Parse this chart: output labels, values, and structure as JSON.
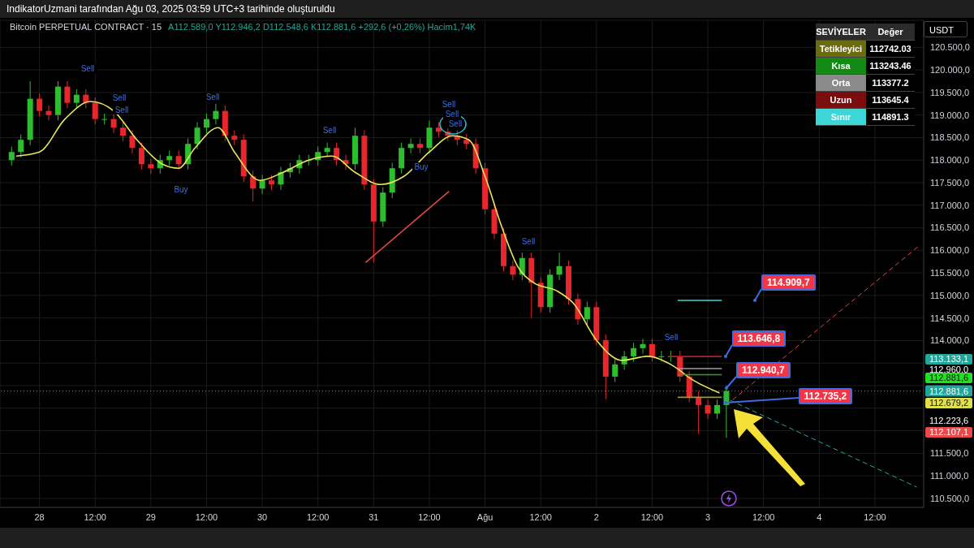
{
  "chart_data": {
    "type": "candlestick",
    "title": "Bitcoin PERPETUAL CONTRACT · 15",
    "x": [
      "2025-07-27T18:00",
      "2025-07-27T20:00",
      "2025-07-27T22:00",
      "2025-07-28T00:00",
      "2025-07-28T02:00",
      "2025-07-28T04:00",
      "2025-07-28T06:00",
      "2025-07-28T08:00",
      "2025-07-28T10:00",
      "2025-07-28T12:00",
      "2025-07-28T14:00",
      "2025-07-28T16:00",
      "2025-07-28T18:00",
      "2025-07-28T20:00",
      "2025-07-28T22:00",
      "2025-07-29T00:00",
      "2025-07-29T02:00",
      "2025-07-29T04:00",
      "2025-07-29T06:00",
      "2025-07-29T08:00",
      "2025-07-29T10:00",
      "2025-07-29T12:00",
      "2025-07-29T14:00",
      "2025-07-29T16:00",
      "2025-07-29T18:00",
      "2025-07-29T20:00",
      "2025-07-29T22:00",
      "2025-07-30T00:00",
      "2025-07-30T02:00",
      "2025-07-30T04:00",
      "2025-07-30T06:00",
      "2025-07-30T08:00",
      "2025-07-30T10:00",
      "2025-07-30T12:00",
      "2025-07-30T14:00",
      "2025-07-30T16:00",
      "2025-07-30T18:00",
      "2025-07-30T20:00",
      "2025-07-30T22:00",
      "2025-07-31T00:00",
      "2025-07-31T02:00",
      "2025-07-31T04:00",
      "2025-07-31T06:00",
      "2025-07-31T08:00",
      "2025-07-31T10:00",
      "2025-07-31T12:00",
      "2025-07-31T14:00",
      "2025-07-31T16:00",
      "2025-07-31T18:00",
      "2025-07-31T20:00",
      "2025-07-31T22:00",
      "2025-08-01T00:00",
      "2025-08-01T02:00",
      "2025-08-01T04:00",
      "2025-08-01T06:00",
      "2025-08-01T08:00",
      "2025-08-01T10:00",
      "2025-08-01T12:00",
      "2025-08-01T14:00",
      "2025-08-01T16:00",
      "2025-08-01T18:00",
      "2025-08-01T20:00",
      "2025-08-01T22:00",
      "2025-08-02T00:00",
      "2025-08-02T02:00",
      "2025-08-02T04:00",
      "2025-08-02T06:00",
      "2025-08-02T08:00",
      "2025-08-02T10:00",
      "2025-08-02T12:00",
      "2025-08-02T14:00",
      "2025-08-02T16:00",
      "2025-08-02T18:00",
      "2025-08-02T20:00",
      "2025-08-02T22:00",
      "2025-08-03T00:00",
      "2025-08-03T02:00",
      "2025-08-03T04:00"
    ],
    "ohlc": [
      [
        118000,
        118300,
        117880,
        118180
      ],
      [
        118180,
        118570,
        118060,
        118450
      ],
      [
        118450,
        119750,
        118330,
        119360
      ],
      [
        119360,
        119480,
        118970,
        119090
      ],
      [
        119090,
        119210,
        118880,
        119000
      ],
      [
        119000,
        119750,
        118880,
        119630
      ],
      [
        119630,
        119750,
        119150,
        119270
      ],
      [
        119270,
        119570,
        119150,
        119450
      ],
      [
        119450,
        119570,
        119150,
        119270
      ],
      [
        119270,
        119390,
        118790,
        118910
      ],
      [
        118910,
        119030,
        118790,
        118910
      ],
      [
        118910,
        119030,
        118600,
        118720
      ],
      [
        118720,
        118840,
        118420,
        118540
      ],
      [
        118540,
        118660,
        118150,
        118270
      ],
      [
        118270,
        118390,
        117790,
        117910
      ],
      [
        117910,
        118030,
        117700,
        117820
      ],
      [
        117820,
        118120,
        117700,
        118000
      ],
      [
        118000,
        118210,
        117880,
        118090
      ],
      [
        118090,
        118210,
        117790,
        117910
      ],
      [
        117910,
        118480,
        117790,
        118360
      ],
      [
        118360,
        118840,
        118240,
        118720
      ],
      [
        118720,
        119030,
        118600,
        118910
      ],
      [
        118910,
        119250,
        118790,
        119090
      ],
      [
        119090,
        119210,
        118420,
        118540
      ],
      [
        118540,
        118660,
        118330,
        118450
      ],
      [
        118450,
        118570,
        117520,
        117640
      ],
      [
        117640,
        117760,
        117080,
        117370
      ],
      [
        117370,
        117670,
        117250,
        117550
      ],
      [
        117550,
        117670,
        117340,
        117460
      ],
      [
        117460,
        117850,
        117340,
        117730
      ],
      [
        117730,
        117940,
        117610,
        117820
      ],
      [
        117820,
        118120,
        117700,
        118000
      ],
      [
        118000,
        118120,
        117880,
        118000
      ],
      [
        118000,
        118300,
        117880,
        118180
      ],
      [
        118180,
        118390,
        118060,
        118270
      ],
      [
        118270,
        118390,
        117880,
        118000
      ],
      [
        118000,
        118120,
        117790,
        117910
      ],
      [
        117910,
        118720,
        117790,
        118540
      ],
      [
        118540,
        118660,
        117340,
        117460
      ],
      [
        117460,
        117580,
        115730,
        116640
      ],
      [
        116640,
        117400,
        116520,
        117280
      ],
      [
        117280,
        117940,
        117160,
        117820
      ],
      [
        117820,
        118390,
        117700,
        118270
      ],
      [
        118270,
        118480,
        118150,
        118360
      ],
      [
        118360,
        118480,
        118150,
        118270
      ],
      [
        118270,
        118880,
        118150,
        118720
      ],
      [
        118720,
        118840,
        118510,
        118630
      ],
      [
        118630,
        118750,
        118420,
        118540
      ],
      [
        118540,
        118660,
        118330,
        118450
      ],
      [
        118450,
        118570,
        118240,
        118360
      ],
      [
        118360,
        118480,
        117700,
        117820
      ],
      [
        117820,
        117940,
        116790,
        116910
      ],
      [
        116910,
        117030,
        116250,
        116370
      ],
      [
        116370,
        116490,
        115530,
        115650
      ],
      [
        115650,
        115770,
        115340,
        115460
      ],
      [
        115460,
        115950,
        115340,
        115830
      ],
      [
        115830,
        115950,
        114500,
        115280
      ],
      [
        115280,
        115400,
        114620,
        114740
      ],
      [
        114740,
        115580,
        114620,
        115460
      ],
      [
        115460,
        115950,
        115340,
        115650
      ],
      [
        115650,
        115770,
        114800,
        114920
      ],
      [
        114920,
        115040,
        114350,
        114470
      ],
      [
        114470,
        114860,
        114350,
        114740
      ],
      [
        114740,
        114860,
        113890,
        114010
      ],
      [
        114010,
        114130,
        112700,
        113200
      ],
      [
        113200,
        113590,
        113080,
        113470
      ],
      [
        113470,
        113770,
        113350,
        113650
      ],
      [
        113650,
        113950,
        113530,
        113830
      ],
      [
        113830,
        114040,
        113710,
        113920
      ],
      [
        113920,
        114040,
        113530,
        113650
      ],
      [
        113650,
        113770,
        113530,
        113650
      ],
      [
        113650,
        113770,
        113530,
        113650
      ],
      [
        113650,
        113770,
        113080,
        113200
      ],
      [
        113200,
        113320,
        112630,
        112750
      ],
      [
        112750,
        112870,
        111930,
        112570
      ],
      [
        112570,
        112690,
        112260,
        112380
      ],
      [
        112380,
        112690,
        112260,
        112570
      ],
      [
        112570,
        113000,
        111840,
        112881.6
      ]
    ],
    "series": [
      {
        "type": "line",
        "color": "#e8e85a",
        "x": [
          "2025-07-27T19:00",
          "2025-07-28T00:00",
          "2025-07-28T05:30",
          "2025-07-28T11:00",
          "2025-07-28T16:00",
          "2025-07-28T21:00",
          "2025-07-29T02:30",
          "2025-07-29T06:00",
          "2025-07-29T09:30",
          "2025-07-29T14:30",
          "2025-07-29T18:00",
          "2025-07-29T23:30",
          "2025-07-30T04:30",
          "2025-07-30T10:00",
          "2025-07-30T15:00",
          "2025-07-30T20:00",
          "2025-07-31T01:30",
          "2025-07-31T06:30",
          "2025-07-31T12:00",
          "2025-07-31T17:00",
          "2025-07-31T20:30",
          "2025-08-01T00:00",
          "2025-08-01T03:30",
          "2025-08-01T07:00",
          "2025-08-01T10:30",
          "2025-08-01T15:30",
          "2025-08-01T19:00",
          "2025-08-02T00:00",
          "2025-08-02T05:30",
          "2025-08-02T11:00",
          "2025-08-02T16:00",
          "2025-08-02T21:00",
          "2025-08-03T02:30"
        ],
        "values": [
          118090,
          118180,
          118910,
          119300,
          119090,
          118450,
          117910,
          117820,
          118270,
          118720,
          118180,
          117550,
          117730,
          118000,
          118090,
          117730,
          117460,
          117640,
          118180,
          118540,
          118450,
          117640,
          116550,
          115650,
          115280,
          115100,
          114830,
          114010,
          113560,
          113650,
          113470,
          113110,
          112840
        ]
      },
      {
        "type": "line",
        "color": "#3dd6d6",
        "x": [
          "2025-08-02T17:30",
          "2025-08-03T03:00"
        ],
        "values": [
          114891.3,
          114891.3
        ]
      },
      {
        "type": "line",
        "color": "#b22222",
        "x": [
          "2025-08-02T15:30",
          "2025-08-03T03:00"
        ],
        "values": [
          113645.4,
          113645.4
        ]
      },
      {
        "type": "line",
        "color": "#9e9e9e",
        "x": [
          "2025-08-02T17:30",
          "2025-08-03T03:00"
        ],
        "values": [
          113377.2,
          113377.2
        ]
      },
      {
        "type": "line",
        "color": "#2e9e2e",
        "x": [
          "2025-08-02T17:30",
          "2025-08-03T03:00"
        ],
        "values": [
          113243.46,
          113243.46
        ]
      },
      {
        "type": "line",
        "color": "#9a9a2a",
        "x": [
          "2025-08-02T17:30",
          "2025-08-03T03:00"
        ],
        "values": [
          112742.03,
          112742.03
        ]
      },
      {
        "type": "line",
        "color": "#e04848",
        "x": [
          "2025-07-30T22:15",
          "2025-07-31T16:15"
        ],
        "values": [
          115730,
          117310
        ]
      },
      {
        "type": "line",
        "color": "#e04848",
        "line_style": "dashed",
        "x": [
          "2025-08-03T04:00",
          "2025-08-04T21:30"
        ],
        "values": [
          112570,
          116100
        ]
      },
      {
        "type": "line",
        "color": "#2aa7a7",
        "line_style": "dashed",
        "x": [
          "2025-08-03T03:15",
          "2025-08-04T21:00"
        ],
        "values": [
          112750,
          110750
        ]
      }
    ],
    "ref_lines": [
      {
        "axis": "y",
        "value": 112881.6,
        "label": "112.881,6",
        "color": "#22a69a",
        "line_style": "dotted"
      }
    ],
    "annotations": [
      "IndikatorUzmani tarafından Ağu 03, 2025 03:59 UTC+3 tarihinde oluşturuldu",
      "A112.589,0 Y112.946,2 D112.548,6 K112.881,6 +292,6 (+0,26%) Hacim1,74K",
      "SEVİYELER",
      "Değer",
      "Tetikleyici",
      "112742.03",
      "Kısa",
      "113243.46",
      "Orta",
      "113377.2",
      "Uzun",
      "113645.4",
      "Sınır",
      "114891.3",
      "USDT",
      "Sell",
      "Sell",
      "Sell",
      "Buy",
      "Sell",
      "Sell",
      "Buy",
      "Sell",
      "Sell",
      "Sell",
      "Sell",
      "Sell",
      "114.909,7",
      {
        "text": "113.646,8",
        "x": "2025-08-03T03:45",
        "y": 113646.8
      },
      {
        "text": "112.940,7",
        "x": "2025-08-03T04:00",
        "y": 112940.7
      },
      {
        "text": "112.735,2",
        "x": "2025-08-03T03:45",
        "y": 112735.2
      },
      "113.133,1",
      "112.960,0",
      "112.881,6",
      "112.679,2",
      "112.223,6",
      "112.107,1"
    ],
    "xlim": [
      "2025-07-27T15:30",
      "2025-08-04T22:30"
    ],
    "xticks": [
      {
        "value": "2025-07-28",
        "label": "28"
      },
      {
        "value": "2025-07-28T12:00",
        "label": "12:00"
      },
      {
        "value": "2025-07-29",
        "label": "29"
      },
      {
        "value": "2025-07-29T12:00",
        "label": "12:00"
      },
      {
        "value": "2025-07-30",
        "label": "30"
      },
      {
        "value": "2025-07-30T12:00",
        "label": "12:00"
      },
      {
        "value": "2025-07-31",
        "label": "31"
      },
      {
        "value": "2025-07-31T12:00",
        "label": "12:00"
      },
      {
        "value": "2025-08-01",
        "label": "Ağu"
      },
      {
        "value": "2025-08-01T12:00",
        "label": "12:00"
      },
      {
        "value": "2025-08-02",
        "label": "2"
      },
      {
        "value": "2025-08-02T12:00",
        "label": "12:00"
      },
      {
        "value": "2025-08-03",
        "label": "3"
      },
      {
        "value": "2025-08-03T12:00",
        "label": "12:00"
      },
      {
        "value": "2025-08-04",
        "label": "4"
      },
      {
        "value": "2025-08-04T12:00",
        "label": "12:00"
      }
    ],
    "ylim": [
      110300,
      121100
    ],
    "yticks": [
      {
        "value": 110500,
        "label": "110.500,0"
      },
      {
        "value": 111000,
        "label": "111.000,0"
      },
      {
        "value": 111500,
        "label": "111.500,0"
      },
      {
        "value": 112000,
        "label": null
      },
      {
        "value": 112500,
        "label": null
      },
      {
        "value": 113000,
        "label": null
      },
      {
        "value": 113500,
        "label": null
      },
      {
        "value": 114000,
        "label": "114.000,0"
      },
      {
        "value": 114500,
        "label": "114.500,0"
      },
      {
        "value": 115000,
        "label": "115.000,0"
      },
      {
        "value": 115500,
        "label": "115.500,0"
      },
      {
        "value": 116000,
        "label": "116.000,0"
      },
      {
        "value": 116500,
        "label": "116.500,0"
      },
      {
        "value": 117000,
        "label": "117.000,0"
      },
      {
        "value": 117500,
        "label": "117.500,0"
      },
      {
        "value": 118000,
        "label": "118.000,0"
      },
      {
        "value": 118500,
        "label": "118.500,0"
      },
      {
        "value": 119000,
        "label": "119.000,0"
      },
      {
        "value": 119500,
        "label": "119.500,0"
      },
      {
        "value": 120000,
        "label": "120.000,0"
      },
      {
        "value": 120500,
        "label": "120.500,0"
      }
    ],
    "grid": true,
    "legend": false
  }
}
